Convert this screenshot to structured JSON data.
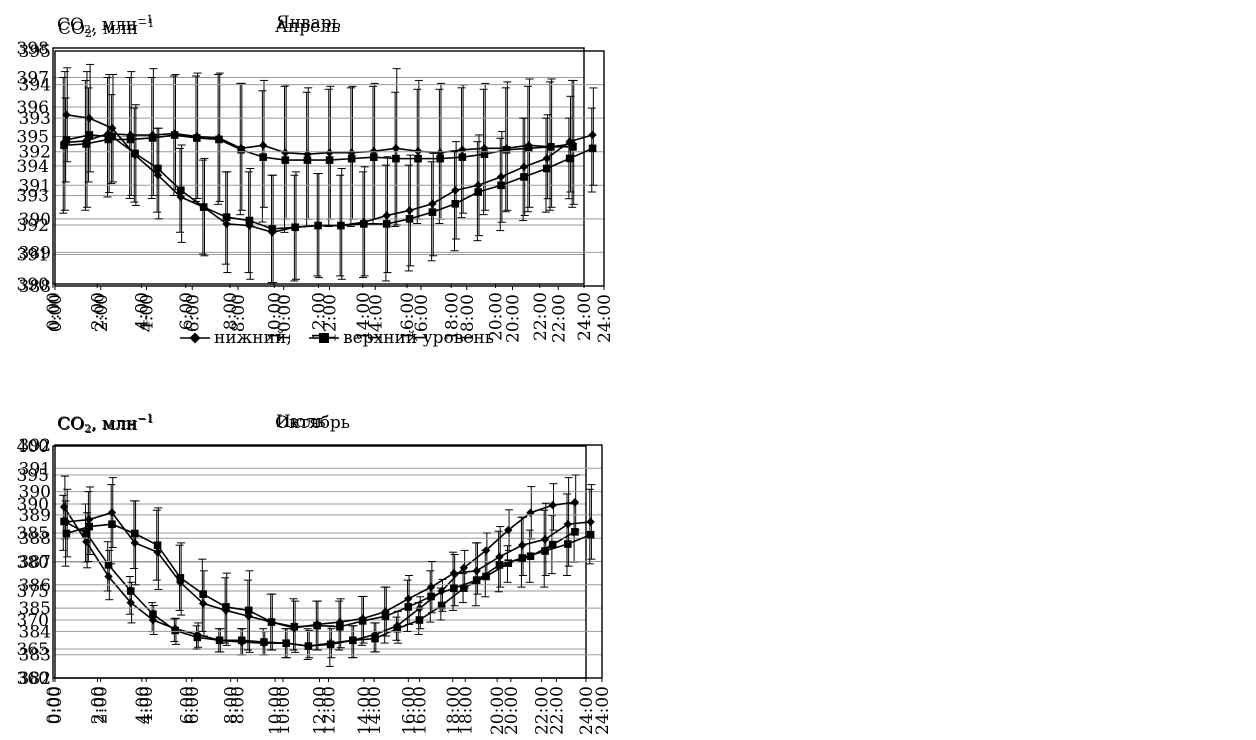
{
  "unit": {
    "base": "CO",
    "sub": "2",
    "rest": ", млн",
    "sup": "−1"
  },
  "legend": {
    "label1": "нижний,",
    "label2": "верхний уровень"
  },
  "chart_data": [
    {
      "type": "line",
      "title": "Январь",
      "ylabel": "CO2, млн−1",
      "ylim": [
        390,
        398
      ],
      "yticks": [
        390,
        391,
        392,
        393,
        394,
        395,
        396,
        397,
        398
      ],
      "xlim": [
        0,
        24
      ],
      "xticks": [
        "0:00",
        "2:00",
        "4:00",
        "6:00",
        "8:00",
        "10:00",
        "12:00",
        "14:00",
        "16:00",
        "18:00",
        "20:00",
        "22:00",
        "24:00"
      ],
      "grid": "horizontal",
      "x": [
        0.5,
        1.5,
        2.5,
        3.5,
        4.5,
        5.5,
        6.5,
        7.5,
        8.5,
        9.5,
        10.5,
        11.5,
        12.5,
        13.5,
        14.5,
        15.5,
        16.5,
        17.5,
        18.5,
        19.5,
        20.5,
        21.5,
        22.5,
        23.5
      ],
      "series": [
        {
          "name": "нижний",
          "marker": "diamond",
          "values": [
            394.8,
            394.85,
            395.1,
            395.05,
            395.05,
            395.1,
            395.0,
            394.95,
            394.6,
            394.7,
            394.45,
            394.4,
            394.45,
            394.45,
            394.5,
            394.6,
            394.5,
            394.45,
            394.55,
            394.6,
            394.6,
            394.7,
            394.65,
            394.75
          ],
          "err_up": [
            397.2,
            397.2,
            397.1,
            397.2,
            397.3,
            397.1,
            397.15,
            397.15,
            396.8,
            396.9,
            396.75,
            396.65,
            396.7,
            396.7,
            396.8,
            397.3,
            396.9,
            396.8,
            396.75,
            396.8,
            396.85,
            396.95,
            396.95,
            396.9
          ],
          "err_low": [
            392.5,
            392.6,
            393.1,
            393.0,
            393.0,
            393.2,
            392.9,
            392.8,
            392.5,
            392.6,
            392.2,
            392.2,
            392.2,
            392.2,
            392.2,
            392.0,
            392.2,
            392.2,
            392.4,
            392.5,
            392.5,
            392.6,
            392.6,
            392.7
          ]
        },
        {
          "name": "верхний уровень",
          "marker": "square",
          "values": [
            394.7,
            394.75,
            394.9,
            394.9,
            394.95,
            395.05,
            394.95,
            394.9,
            394.55,
            394.3,
            394.2,
            394.2,
            394.2,
            394.25,
            394.3,
            394.25,
            394.25,
            394.25,
            394.3,
            394.4,
            394.55,
            394.6,
            394.65,
            394.65
          ],
          "err_up": [
            397.0,
            396.9,
            397.0,
            397.0,
            397.0,
            397.05,
            397.05,
            397.1,
            396.8,
            396.55,
            396.7,
            396.5,
            396.6,
            396.65,
            396.7,
            396.5,
            396.6,
            396.6,
            396.65,
            396.6,
            396.65,
            396.7,
            396.85,
            396.9
          ],
          "err_low": [
            392.4,
            392.5,
            392.95,
            392.9,
            392.9,
            393.0,
            392.8,
            392.7,
            392.35,
            392.1,
            391.75,
            391.95,
            391.95,
            391.95,
            392.05,
            391.95,
            392.05,
            392.05,
            392.25,
            392.35,
            392.45,
            392.45,
            392.5,
            392.6
          ]
        }
      ]
    },
    {
      "type": "line",
      "title": "Апрель",
      "ylabel": "CO2, млн−1",
      "ylim": [
        388,
        395
      ],
      "yticks": [
        388,
        389,
        390,
        391,
        392,
        393,
        394,
        395
      ],
      "xlim": [
        0,
        24
      ],
      "xticks": [
        "0:00",
        "2:00",
        "4:00",
        "6:00",
        "8:00",
        "10:00",
        "12:00",
        "14:00",
        "16:00",
        "18:00",
        "20:00",
        "22:00",
        "24:00"
      ],
      "grid": "horizontal",
      "x": [
        0.5,
        1.5,
        2.5,
        3.5,
        4.5,
        5.5,
        6.5,
        7.5,
        8.5,
        9.5,
        10.5,
        11.5,
        12.5,
        13.5,
        14.5,
        15.5,
        16.5,
        17.5,
        18.5,
        19.5,
        20.5,
        21.5,
        22.5,
        23.5
      ],
      "series": [
        {
          "name": "нижний",
          "marker": "diamond",
          "values": [
            393.1,
            393.0,
            392.7,
            391.9,
            391.3,
            390.65,
            390.35,
            389.85,
            389.8,
            389.6,
            389.75,
            389.8,
            389.8,
            389.9,
            390.1,
            390.25,
            390.45,
            390.85,
            391.0,
            391.25,
            391.55,
            391.8,
            392.3,
            392.5
          ],
          "err_up": [
            394.5,
            394.6,
            394.3,
            393.4,
            392.7,
            392.2,
            391.8,
            391.4,
            391.5,
            391.3,
            391.4,
            391.35,
            391.5,
            391.55,
            391.85,
            391.9,
            391.95,
            392.3,
            392.5,
            392.6,
            393.0,
            393.1,
            393.65,
            393.9
          ],
          "err_low": [
            391.7,
            391.4,
            391.1,
            390.4,
            390.0,
            389.3,
            388.9,
            388.4,
            388.2,
            388.1,
            388.2,
            388.25,
            388.2,
            388.3,
            388.4,
            388.6,
            388.9,
            389.4,
            389.5,
            389.9,
            390.1,
            390.6,
            390.8,
            391.0
          ]
        },
        {
          "name": "верхний уровень",
          "marker": "square",
          "values": [
            392.35,
            392.5,
            392.45,
            391.95,
            391.5,
            390.85,
            390.35,
            390.05,
            389.95,
            389.7,
            389.75,
            389.8,
            389.8,
            389.85,
            389.85,
            390.0,
            390.2,
            390.45,
            390.8,
            391.0,
            391.25,
            391.5,
            391.8,
            392.1
          ],
          "err_up": [
            393.6,
            393.9,
            393.7,
            393.3,
            392.7,
            392.1,
            391.75,
            391.4,
            391.4,
            391.3,
            391.3,
            391.35,
            391.3,
            391.4,
            391.6,
            391.6,
            391.7,
            392.0,
            392.3,
            392.4,
            393.0,
            393.0,
            393.0,
            393.3
          ],
          "err_low": [
            391.1,
            391.1,
            391.05,
            390.5,
            390.2,
            389.6,
            388.95,
            388.65,
            388.4,
            388.1,
            388.15,
            388.3,
            388.3,
            388.25,
            388.15,
            388.45,
            388.75,
            389.05,
            389.35,
            389.65,
            389.95,
            390.2,
            390.6,
            390.8
          ]
        }
      ]
    },
    {
      "type": "line",
      "title": "Июль",
      "ylabel": "CO2, млн−1",
      "ylim": [
        360,
        400
      ],
      "yticks": [
        360,
        365,
        370,
        375,
        380,
        385,
        390,
        395,
        400
      ],
      "xlim": [
        0,
        24
      ],
      "xticks": [
        "0:00",
        "2:00",
        "4:00",
        "6:00",
        "8:00",
        "10:00",
        "12:00",
        "14:00",
        "16:00",
        "18:00",
        "20:00",
        "22:00",
        "24:00"
      ],
      "grid": "horizontal",
      "x": [
        0.5,
        1.5,
        2.5,
        3.5,
        4.5,
        5.5,
        6.5,
        7.5,
        8.5,
        9.5,
        10.5,
        11.5,
        12.5,
        13.5,
        14.5,
        15.5,
        16.5,
        17.5,
        18.5,
        19.5,
        20.5,
        21.5,
        22.5,
        23.5
      ],
      "series": [
        {
          "name": "нижний",
          "marker": "diamond",
          "values": [
            389.5,
            383.5,
            377.5,
            373.0,
            370.0,
            368.5,
            367.5,
            366.5,
            366.2,
            366.0,
            366.0,
            365.5,
            366.0,
            366.5,
            367.5,
            369.0,
            372.0,
            375.0,
            379.0,
            382.0,
            385.5,
            388.5,
            389.8,
            390.3
          ],
          "err_up": [
            394.8,
            388.5,
            382.0,
            376.5,
            372.5,
            370.3,
            369.5,
            368.5,
            368.5,
            368.0,
            368.5,
            368.2,
            368.5,
            369.0,
            369.5,
            371.5,
            374.0,
            377.0,
            382.0,
            385.0,
            389.0,
            393.0,
            393.5,
            395.0
          ],
          "err_low": [
            384.0,
            379.0,
            373.5,
            369.5,
            367.5,
            365.8,
            365.3,
            364.5,
            364.0,
            364.0,
            363.5,
            363.5,
            363.5,
            363.5,
            364.5,
            366.0,
            368.5,
            371.5,
            375.5,
            378.0,
            382.0,
            384.0,
            385.5,
            385.5
          ]
        },
        {
          "name": "верхний уровень",
          "marker": "square",
          "values": [
            387.0,
            385.0,
            379.5,
            375.0,
            371.0,
            368.2,
            367.0,
            366.5,
            366.5,
            366.2,
            366.0,
            365.5,
            365.8,
            366.5,
            366.8,
            368.5,
            370.0,
            372.5,
            375.5,
            377.5,
            379.8,
            381.0,
            383.0,
            385.2
          ],
          "err_up": [
            391.5,
            390.0,
            383.5,
            377.5,
            373.0,
            370.2,
            369.0,
            368.5,
            368.5,
            368.5,
            368.5,
            368.5,
            369.0,
            369.0,
            369.5,
            370.5,
            373.0,
            375.5,
            378.0,
            382.0,
            382.8,
            385.5,
            388.0,
            390.0
          ],
          "err_low": [
            382.0,
            380.0,
            375.0,
            371.0,
            368.0,
            366.3,
            365.0,
            364.5,
            364.0,
            364.0,
            363.5,
            363.2,
            362.0,
            363.5,
            364.5,
            366.5,
            367.5,
            370.0,
            373.0,
            374.0,
            376.5,
            376.5,
            378.0,
            380.0
          ]
        }
      ]
    },
    {
      "type": "line",
      "title": "Октябрь",
      "ylabel": "CO2, млн−1",
      "ylim": [
        382,
        392
      ],
      "yticks": [
        382,
        383,
        384,
        385,
        386,
        387,
        388,
        389,
        390,
        391,
        392
      ],
      "xlim": [
        0,
        24
      ],
      "xticks": [
        "0:00",
        "2:00",
        "4:00",
        "6:00",
        "8:00",
        "10:00",
        "12:00",
        "14:00",
        "16:00",
        "18:00",
        "20:00",
        "22:00",
        "24:00"
      ],
      "grid": "horizontal",
      "x": [
        0.5,
        1.5,
        2.5,
        3.5,
        4.5,
        5.5,
        6.5,
        7.5,
        8.5,
        9.5,
        10.5,
        11.5,
        12.5,
        13.5,
        14.5,
        15.5,
        16.5,
        17.5,
        18.5,
        19.5,
        20.5,
        21.5,
        22.5,
        23.5
      ],
      "series": [
        {
          "name": "нижний",
          "marker": "diamond",
          "values": [
            388.7,
            388.8,
            389.1,
            387.8,
            387.4,
            386.1,
            385.2,
            384.9,
            384.65,
            384.4,
            384.15,
            384.3,
            384.4,
            384.55,
            384.85,
            385.4,
            385.9,
            386.5,
            386.6,
            387.2,
            387.7,
            387.95,
            388.6,
            388.7
          ],
          "err_up": [
            390.1,
            390.2,
            390.6,
            389.6,
            389.3,
            387.8,
            386.6,
            386.5,
            386.6,
            385.6,
            385.3,
            385.3,
            385.4,
            385.5,
            385.9,
            386.4,
            387.0,
            387.3,
            387.8,
            388.5,
            388.9,
            389.5,
            390.6,
            390.3
          ],
          "err_low": [
            387.2,
            387.3,
            387.6,
            386.0,
            385.8,
            384.7,
            383.8,
            383.4,
            383.1,
            383.2,
            383.1,
            383.2,
            383.3,
            383.5,
            383.8,
            384.3,
            384.8,
            385.1,
            385.6,
            385.9,
            386.4,
            386.4,
            386.8,
            387.1
          ]
        },
        {
          "name": "верхний уровень",
          "marker": "square",
          "values": [
            388.2,
            388.5,
            388.6,
            388.2,
            387.7,
            386.3,
            385.6,
            385.05,
            384.9,
            384.4,
            384.2,
            384.25,
            384.2,
            384.45,
            384.65,
            385.05,
            385.5,
            385.85,
            386.2,
            386.85,
            387.15,
            387.45,
            387.75,
            388.15
          ],
          "err_up": [
            389.6,
            390.0,
            390.3,
            389.6,
            389.2,
            387.7,
            387.1,
            386.3,
            386.2,
            385.6,
            385.4,
            385.3,
            385.3,
            385.5,
            385.9,
            386.2,
            386.6,
            387.4,
            387.8,
            388.3,
            388.9,
            389.2,
            389.9,
            390.1
          ],
          "err_low": [
            386.8,
            387.0,
            386.9,
            386.7,
            386.2,
            384.9,
            384.0,
            383.5,
            383.2,
            383.2,
            383.2,
            383.2,
            383.2,
            383.4,
            383.5,
            384.0,
            384.4,
            384.9,
            385.1,
            385.7,
            385.9,
            385.9,
            386.4,
            386.9
          ]
        }
      ]
    }
  ]
}
